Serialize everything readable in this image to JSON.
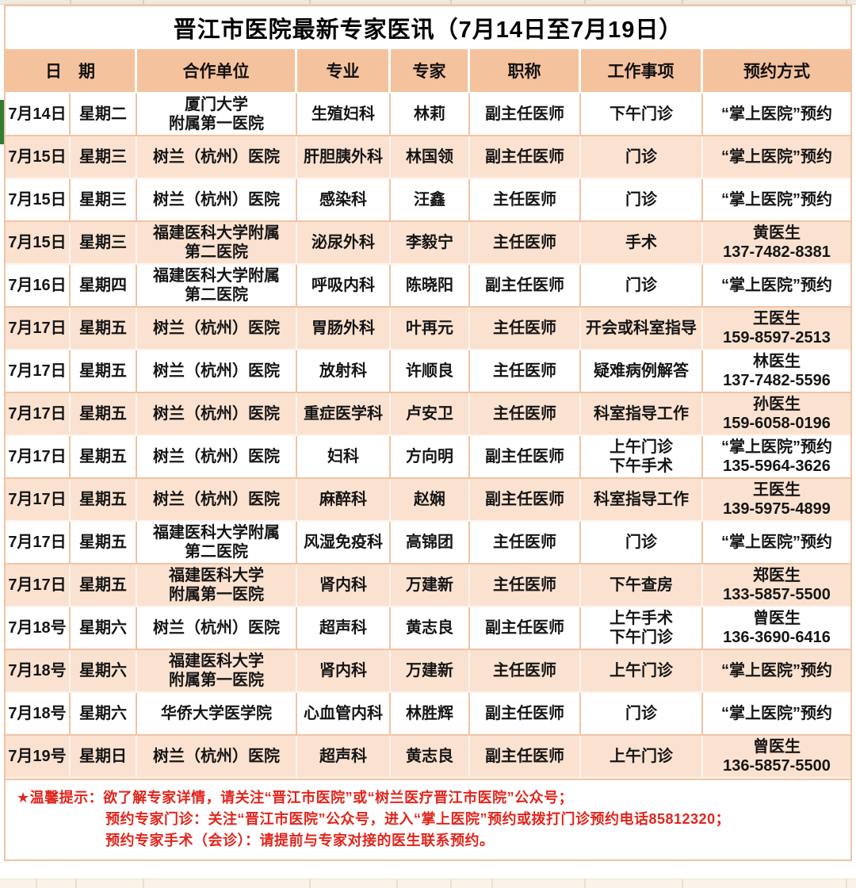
{
  "title": "晋江市医院最新专家医讯（7月14日至7月19日）",
  "colors": {
    "header_bg": "#F5C29E",
    "row_alt_bg": "#FBE2D0",
    "grid_line": "#F2C3A3",
    "notice_red": "#E1251C",
    "edge_mark_green": "#2F7D32"
  },
  "table": {
    "headers": {
      "date": "日　期",
      "unit": "合作单位",
      "specialty": "专业",
      "expert": "专家",
      "job_title": "职称",
      "work": "工作事项",
      "booking": "预约方式"
    },
    "rows": [
      {
        "date": "7月14日",
        "weekday": "星期二",
        "unit": "厦门大学\n附属第一医院",
        "specialty": "生殖妇科",
        "expert": "林莉",
        "job_title": "副主任医师",
        "work": "下午门诊",
        "booking": "“掌上医院”预约"
      },
      {
        "date": "7月15日",
        "weekday": "星期三",
        "unit": "树兰（杭州）医院",
        "specialty": "肝胆胰外科",
        "expert": "林国领",
        "job_title": "副主任医师",
        "work": "门诊",
        "booking": "“掌上医院”预约"
      },
      {
        "date": "7月15日",
        "weekday": "星期三",
        "unit": "树兰（杭州）医院",
        "specialty": "感染科",
        "expert": "汪鑫",
        "job_title": "主任医师",
        "work": "门诊",
        "booking": "“掌上医院”预约"
      },
      {
        "date": "7月15日",
        "weekday": "星期三",
        "unit": "福建医科大学附属\n第二医院",
        "specialty": "泌尿外科",
        "expert": "李毅宁",
        "job_title": "主任医师",
        "work": "手术",
        "booking": "黄医生\n137-7482-8381"
      },
      {
        "date": "7月16日",
        "weekday": "星期四",
        "unit": "福建医科大学附属\n第二医院",
        "specialty": "呼吸内科",
        "expert": "陈晓阳",
        "job_title": "副主任医师",
        "work": "门诊",
        "booking": "“掌上医院”预约"
      },
      {
        "date": "7月17日",
        "weekday": "星期五",
        "unit": "树兰（杭州）医院",
        "specialty": "胃肠外科",
        "expert": "叶再元",
        "job_title": "主任医师",
        "work": "开会或科室指导",
        "booking": "王医生\n159-8597-2513"
      },
      {
        "date": "7月17日",
        "weekday": "星期五",
        "unit": "树兰（杭州）医院",
        "specialty": "放射科",
        "expert": "许顺良",
        "job_title": "主任医师",
        "work": "疑难病例解答",
        "booking": "林医生\n137-7482-5596"
      },
      {
        "date": "7月17日",
        "weekday": "星期五",
        "unit": "树兰（杭州）医院",
        "specialty": "重症医学科",
        "expert": "卢安卫",
        "job_title": "主任医师",
        "work": "科室指导工作",
        "booking": "孙医生\n159-6058-0196"
      },
      {
        "date": "7月17日",
        "weekday": "星期五",
        "unit": "树兰（杭州）医院",
        "specialty": "妇科",
        "expert": "方向明",
        "job_title": "副主任医师",
        "work": "上午门诊\n下午手术",
        "booking": "“掌上医院”预约\n135-5964-3626"
      },
      {
        "date": "7月17日",
        "weekday": "星期五",
        "unit": "树兰（杭州）医院",
        "specialty": "麻醉科",
        "expert": "赵娴",
        "job_title": "副主任医师",
        "work": "科室指导工作",
        "booking": "王医生\n139-5975-4899"
      },
      {
        "date": "7月17日",
        "weekday": "星期五",
        "unit": "福建医科大学附属\n第二医院",
        "specialty": "风湿免疫科",
        "expert": "高锦团",
        "job_title": "主任医师",
        "work": "门诊",
        "booking": "“掌上医院”预约"
      },
      {
        "date": "7月17日",
        "weekday": "星期五",
        "unit": "福建医科大学\n附属第一医院",
        "specialty": "肾内科",
        "expert": "万建新",
        "job_title": "主任医师",
        "work": "下午查房",
        "booking": "郑医生\n133-5857-5500"
      },
      {
        "date": "7月18号",
        "weekday": "星期六",
        "unit": "树兰（杭州）医院",
        "specialty": "超声科",
        "expert": "黄志良",
        "job_title": "副主任医师",
        "work": "上午手术\n下午门诊",
        "booking": "曾医生\n136-3690-6416"
      },
      {
        "date": "7月18号",
        "weekday": "星期六",
        "unit": "福建医科大学\n附属第一医院",
        "specialty": "肾内科",
        "expert": "万建新",
        "job_title": "主任医师",
        "work": "上午门诊",
        "booking": "“掌上医院”预约"
      },
      {
        "date": "7月18号",
        "weekday": "星期六",
        "unit": "华侨大学医学院",
        "specialty": "心血管内科",
        "expert": "林胜辉",
        "job_title": "副主任医师",
        "work": "门诊",
        "booking": "“掌上医院”预约"
      },
      {
        "date": "7月19号",
        "weekday": "星期日",
        "unit": "树兰（杭州）医院",
        "specialty": "超声科",
        "expert": "黄志良",
        "job_title": "副主任医师",
        "work": "上午门诊",
        "booking": "曾医生\n136-5857-5500"
      }
    ]
  },
  "footer": {
    "lines": [
      "★温馨提示：欲了解专家详情，请关注“晋江市医院”或“树兰医疗晋江市医院”公众号；",
      "预约专家门诊：关注“晋江市医院”公众号，进入“掌上医院”预约或拨打门诊预约电话85812320；",
      "预约专家手术（会诊）：请提前与专家对接的医生联系预约。"
    ]
  }
}
